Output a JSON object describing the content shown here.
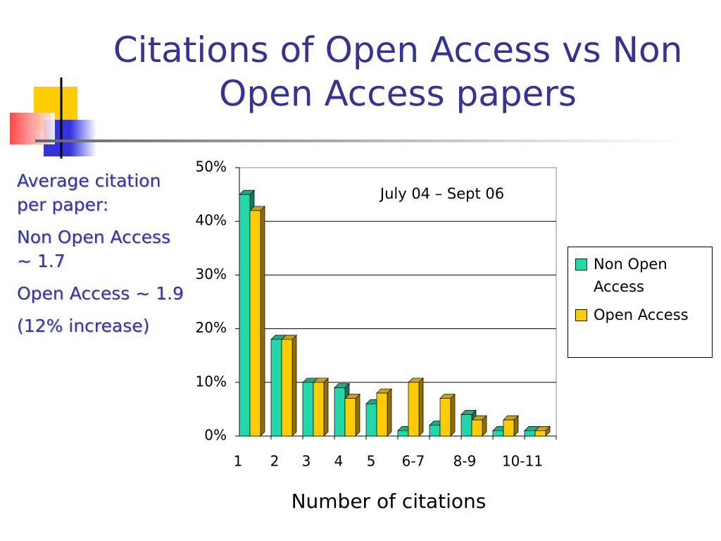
{
  "title": "Citations of Open Access vs Non Open Access papers",
  "notes": [
    "Average citation per paper:",
    "Non Open Access ~ 1.7",
    "Open Access ~ 1.9",
    "(12% increase)"
  ],
  "chart_data": {
    "type": "bar",
    "annotation": "July 04 – Sept 06",
    "x_label": "Number of citations",
    "categories": [
      "1",
      "2",
      "3",
      "4",
      "5",
      "6-7",
      null,
      "8-9",
      null,
      "10-11"
    ],
    "series": [
      {
        "name": "Non Open Access",
        "color": "#20d8a8",
        "values": [
          45,
          18,
          10,
          9,
          6,
          1,
          2,
          4,
          1,
          1
        ]
      },
      {
        "name": "Open Access",
        "color": "#ffcc00",
        "values": [
          42,
          18,
          10,
          7,
          8,
          10,
          7,
          3,
          3,
          1
        ]
      }
    ],
    "ylim": [
      0,
      50
    ],
    "yticks": [
      {
        "value": 0,
        "label": "0%"
      },
      {
        "value": 10,
        "label": "10%"
      },
      {
        "value": 20,
        "label": "20%"
      },
      {
        "value": 30,
        "label": "30%"
      },
      {
        "value": 40,
        "label": "40%"
      },
      {
        "value": 50,
        "label": "50%"
      }
    ],
    "grid": true
  }
}
